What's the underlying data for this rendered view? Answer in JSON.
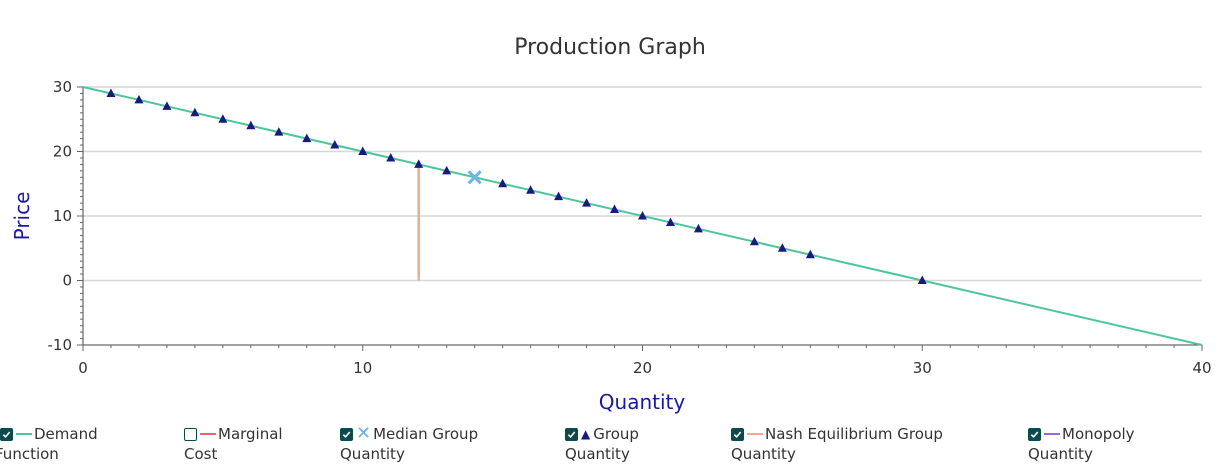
{
  "chart_data": {
    "type": "line",
    "title": "Production Graph",
    "xlabel": "Quantity",
    "ylabel": "Price",
    "xlim": [
      0,
      40
    ],
    "ylim": [
      -10,
      30
    ],
    "x_ticks": [
      0,
      10,
      20,
      30,
      40
    ],
    "y_ticks": [
      -10,
      0,
      10,
      20,
      30
    ],
    "grid": true,
    "series": [
      {
        "name": "Demand Function",
        "kind": "line",
        "color": "#4cc59a",
        "x": [
          0,
          40
        ],
        "y": [
          30,
          -10
        ]
      },
      {
        "name": "Group Quantity",
        "kind": "scatter",
        "marker": "triangle",
        "color": "#1a1a7e",
        "x": [
          1,
          2,
          3,
          4,
          5,
          6,
          7,
          8,
          9,
          10,
          11,
          12,
          13,
          15,
          16,
          17,
          18,
          19,
          20,
          21,
          22,
          24,
          25,
          26,
          30
        ],
        "y": [
          29,
          28,
          27,
          26,
          25,
          24,
          23,
          22,
          21,
          20,
          19,
          18,
          17,
          15,
          14,
          13,
          12,
          11,
          10,
          9,
          8,
          6,
          5,
          4,
          0
        ]
      },
      {
        "name": "Median Group Quantity",
        "kind": "scatter",
        "marker": "x",
        "color": "#6bb5e8",
        "x": [
          14
        ],
        "y": [
          16
        ]
      },
      {
        "name": "Nash Equilibrium Group Quantity",
        "kind": "vline",
        "color": "#f0a98c",
        "x": [
          12,
          12
        ],
        "y": [
          0,
          18
        ]
      }
    ]
  },
  "legend": {
    "items": [
      {
        "line1": "Demand",
        "line2": "Function",
        "checked": true,
        "swatch": "line",
        "color": "#4cc59a"
      },
      {
        "line1": "Marginal",
        "line2": "Cost",
        "checked": false,
        "swatch": "line",
        "color": "#e8646c"
      },
      {
        "line1": "Median Group",
        "line2": "Quantity",
        "checked": true,
        "swatch": "x",
        "symbol": "✕",
        "color": "#6bb5e8"
      },
      {
        "line1": "Group",
        "line2": "Quantity",
        "checked": true,
        "swatch": "triangle",
        "symbol": "▲",
        "color": "#1a1a7e"
      },
      {
        "line1": "Nash Equilibrium Group",
        "line2": "Quantity",
        "checked": true,
        "swatch": "line",
        "color": "#f0a98c"
      },
      {
        "line1": "Monopoly",
        "line2": "Quantity",
        "checked": true,
        "swatch": "line",
        "color": "#9a66e0"
      }
    ]
  },
  "colors": {
    "axis_label": "#1a1a9e",
    "checkbox": "#0c4a4e"
  }
}
